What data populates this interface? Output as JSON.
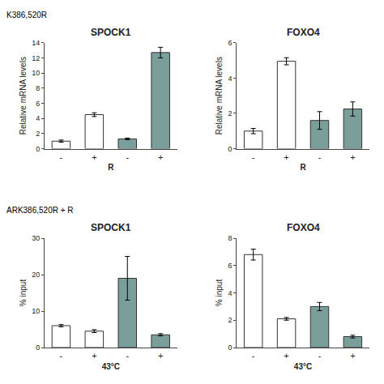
{
  "chart_data": [
    {
      "type": "bar",
      "title": "SPOCK1",
      "xlabel": "R",
      "ylabel": "Relative mRNA levels",
      "categories": [
        "-",
        "+",
        "-",
        "+"
      ],
      "values": [
        1.0,
        4.5,
        1.3,
        12.7
      ],
      "errors": [
        0.15,
        0.25,
        0.1,
        0.7
      ],
      "colors": [
        "white",
        "white",
        "#7a9e9a",
        "#7a9e9a"
      ],
      "ylim": [
        0,
        14
      ],
      "yticks": [
        0,
        2,
        4,
        6,
        8,
        10,
        12,
        14
      ],
      "grid": false,
      "annotations": [
        {
          "text": "K386,520R"
        }
      ]
    },
    {
      "type": "bar",
      "title": "FOXO4",
      "xlabel": "R",
      "ylabel": "Relative mRNA levels",
      "categories": [
        "-",
        "+",
        "-",
        "+"
      ],
      "values": [
        1.0,
        4.95,
        1.6,
        2.25
      ],
      "errors": [
        0.15,
        0.2,
        0.5,
        0.4
      ],
      "colors": [
        "white",
        "white",
        "#7a9e9a",
        "#7a9e9a"
      ],
      "ylim": [
        0,
        6
      ],
      "yticks": [
        0,
        2,
        4,
        6
      ],
      "grid": false
    },
    {
      "type": "bar",
      "title": "SPOCK1",
      "xlabel": "43°C",
      "ylabel": "% input",
      "categories": [
        "-",
        "+",
        "-",
        "+"
      ],
      "values": [
        6.0,
        4.5,
        19.0,
        3.5
      ],
      "errors": [
        0.3,
        0.4,
        6.0,
        0.3
      ],
      "colors": [
        "white",
        "white",
        "#7a9e9a",
        "#7a9e9a"
      ],
      "ylim": [
        0,
        30
      ],
      "yticks": [
        0,
        10,
        20,
        30
      ],
      "grid": false,
      "annotations": [
        {
          "text": "ARK386,520R + R"
        }
      ]
    },
    {
      "type": "bar",
      "title": "FOXO4",
      "xlabel": "43°C",
      "ylabel": "% input",
      "categories": [
        "-",
        "+",
        "-",
        "+"
      ],
      "values": [
        6.8,
        2.1,
        3.0,
        0.8
      ],
      "errors": [
        0.4,
        0.1,
        0.3,
        0.1
      ],
      "colors": [
        "white",
        "white",
        "#7a9e9a",
        "#7a9e9a"
      ],
      "ylim": [
        0,
        8
      ],
      "yticks": [
        0,
        2,
        4,
        6,
        8
      ],
      "grid": false
    }
  ]
}
